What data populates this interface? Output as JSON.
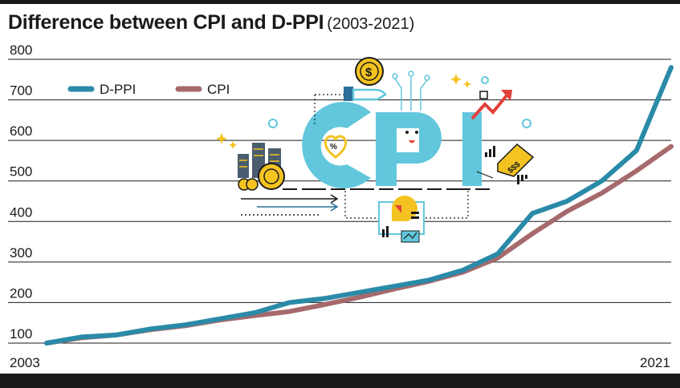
{
  "header": {
    "title": "Difference between CPI and D-PPI",
    "subtitle": "(2003-2021)"
  },
  "illustration": {
    "word": "CPI",
    "icon_names": [
      "coin-dollar-icon",
      "hand-icon",
      "city-buildings-icon",
      "coins-icon",
      "heart-percent-icon",
      "smiley-face-icon",
      "trend-arrow-icon",
      "price-tag-icon",
      "dashboard-chart-icon",
      "sparkle-icon"
    ],
    "tag_text": "$$$"
  },
  "colors": {
    "dppi": "#2a8aa8",
    "cpi": "#a66a6c",
    "cpi_letters": "#62c7dc",
    "accent_yellow": "#f4c321",
    "accent_red": "#e0413a"
  },
  "chart_data": {
    "type": "line",
    "title": "Difference between CPI and D-PPI",
    "subtitle": "(2003-2021)",
    "x": [
      2003,
      2004,
      2005,
      2006,
      2007,
      2008,
      2009,
      2010,
      2011,
      2012,
      2013,
      2014,
      2015,
      2016,
      2017,
      2018,
      2019,
      2020,
      2021
    ],
    "x_tick_labels": [
      "2003",
      "2021"
    ],
    "y_ticks": [
      100,
      200,
      300,
      400,
      500,
      600,
      700,
      800
    ],
    "ylim": [
      100,
      800
    ],
    "grid": true,
    "legend_position": "top-left",
    "series": [
      {
        "name": "D-PPI",
        "values": [
          100,
          115,
          120,
          135,
          145,
          160,
          175,
          200,
          210,
          225,
          240,
          255,
          280,
          320,
          420,
          450,
          500,
          575,
          780
        ]
      },
      {
        "name": "CPI",
        "values": [
          100,
          113,
          120,
          133,
          143,
          157,
          168,
          178,
          195,
          213,
          233,
          252,
          275,
          310,
          370,
          425,
          470,
          525,
          585
        ]
      }
    ]
  }
}
